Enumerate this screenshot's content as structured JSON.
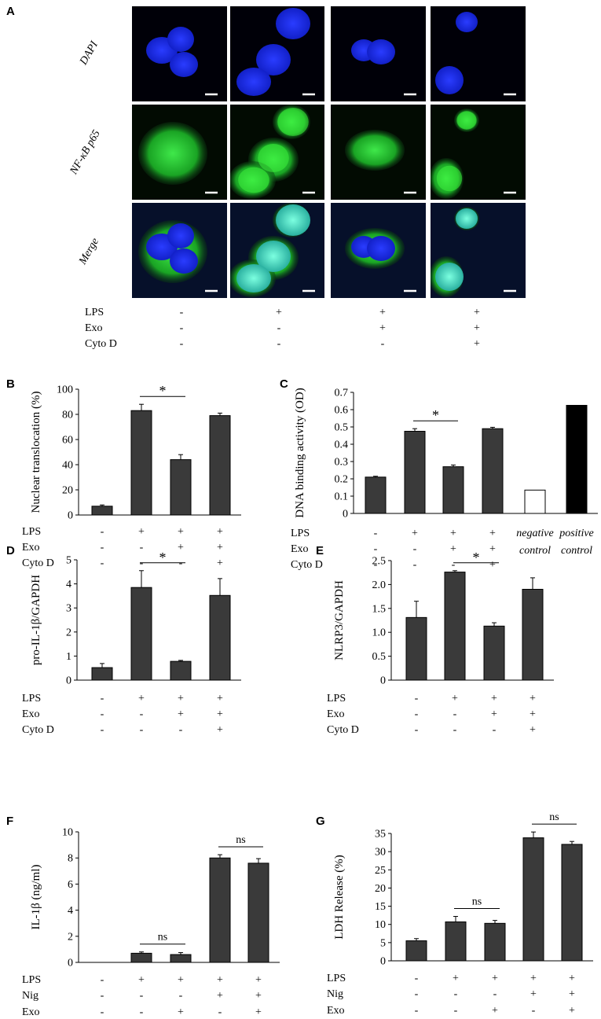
{
  "panel_A": {
    "letter": "A",
    "row_labels": [
      "DAPI",
      "NF-κB p65",
      "Merge"
    ],
    "conditions": {
      "labels": [
        "LPS",
        "Exo",
        "Cyto D"
      ],
      "signs": [
        [
          "-",
          "+",
          "+",
          "+"
        ],
        [
          "-",
          "-",
          "+",
          "+"
        ],
        [
          "-",
          "-",
          "-",
          "+"
        ]
      ]
    }
  },
  "chart_data": [
    {
      "id": "B",
      "type": "bar",
      "ylabel": "Nuclear translocation (%)",
      "ylim": [
        0,
        100
      ],
      "yticks": [
        "0",
        "20",
        "40",
        "60",
        "80",
        "100"
      ],
      "values": [
        7,
        83,
        44,
        79
      ],
      "errors": [
        1,
        5,
        4,
        2
      ],
      "bar_colors": [
        "#3a3a3a",
        "#3a3a3a",
        "#3a3a3a",
        "#3a3a3a"
      ],
      "significance": [
        {
          "from": 1,
          "to": 2,
          "label": "*"
        }
      ],
      "conditions": {
        "labels": [
          "LPS",
          "Exo",
          "Cyto D"
        ],
        "signs": [
          [
            "-",
            "+",
            "+",
            "+"
          ],
          [
            "-",
            "-",
            "+",
            "+"
          ],
          [
            "-",
            "-",
            "-",
            "+"
          ]
        ]
      }
    },
    {
      "id": "C",
      "type": "bar",
      "ylabel": "DNA binding activity (OD)",
      "ylim": [
        0,
        0.7
      ],
      "yticks": [
        "0",
        "0.1",
        "0.2",
        "0.3",
        "0.4",
        "0.5",
        "0.6",
        "0.7"
      ],
      "values": [
        0.21,
        0.475,
        0.27,
        0.49,
        0.135,
        0.625
      ],
      "errors": [
        0.005,
        0.015,
        0.01,
        0.008,
        0,
        0
      ],
      "bar_colors": [
        "#3a3a3a",
        "#3a3a3a",
        "#3a3a3a",
        "#3a3a3a",
        "#ffffff",
        "#000000"
      ],
      "significance": [
        {
          "from": 1,
          "to": 2,
          "label": "*"
        }
      ],
      "extra_labels": [
        [
          "negative",
          "control"
        ],
        [
          "positive",
          "control"
        ]
      ],
      "conditions": {
        "labels": [
          "LPS",
          "Exo",
          "Cyto D"
        ],
        "signs": [
          [
            "-",
            "+",
            "+",
            "+"
          ],
          [
            "-",
            "-",
            "+",
            "+"
          ],
          [
            "-",
            "-",
            "-",
            "+"
          ]
        ]
      }
    },
    {
      "id": "D",
      "type": "bar",
      "ylabel": "pro-IL-1β/GAPDH",
      "ylim": [
        0,
        5
      ],
      "yticks": [
        "0",
        "1",
        "2",
        "3",
        "4",
        "5"
      ],
      "values": [
        0.52,
        3.85,
        0.78,
        3.52
      ],
      "errors": [
        0.17,
        0.7,
        0.04,
        0.7
      ],
      "bar_colors": [
        "#3a3a3a",
        "#3a3a3a",
        "#3a3a3a",
        "#3a3a3a"
      ],
      "significance": [
        {
          "from": 1,
          "to": 2,
          "label": "*"
        }
      ],
      "conditions": {
        "labels": [
          "LPS",
          "Exo",
          "Cyto D"
        ],
        "signs": [
          [
            "-",
            "+",
            "+",
            "+"
          ],
          [
            "-",
            "-",
            "+",
            "+"
          ],
          [
            "-",
            "-",
            "-",
            "+"
          ]
        ]
      }
    },
    {
      "id": "E",
      "type": "bar",
      "ylabel": "NLRP3/GAPDH",
      "ylim": [
        0,
        2.5
      ],
      "yticks": [
        "0",
        "0.5",
        "1.0",
        "1.5",
        "2.0",
        "2.5"
      ],
      "values": [
        1.31,
        2.26,
        1.13,
        1.9
      ],
      "errors": [
        0.34,
        0.03,
        0.07,
        0.24
      ],
      "bar_colors": [
        "#3a3a3a",
        "#3a3a3a",
        "#3a3a3a",
        "#3a3a3a"
      ],
      "significance": [
        {
          "from": 1,
          "to": 2,
          "label": "*"
        }
      ],
      "conditions": {
        "labels": [
          "LPS",
          "Exo",
          "Cyto D"
        ],
        "signs": [
          [
            "-",
            "+",
            "+",
            "+"
          ],
          [
            "-",
            "-",
            "+",
            "+"
          ],
          [
            "-",
            "-",
            "-",
            "+"
          ]
        ]
      }
    },
    {
      "id": "F",
      "type": "bar",
      "ylabel": "IL-1β (ng/ml)",
      "ylim": [
        0,
        10
      ],
      "yticks": [
        "0",
        "2",
        "4",
        "6",
        "8",
        "10"
      ],
      "values": [
        0,
        0.7,
        0.6,
        8.0,
        7.6
      ],
      "errors": [
        0,
        0.1,
        0.15,
        0.25,
        0.35
      ],
      "bar_colors": [
        "#3a3a3a",
        "#3a3a3a",
        "#3a3a3a",
        "#3a3a3a",
        "#3a3a3a"
      ],
      "significance": [
        {
          "from": 1,
          "to": 2,
          "label": "ns"
        },
        {
          "from": 3,
          "to": 4,
          "label": "ns"
        }
      ],
      "conditions": {
        "labels": [
          "LPS",
          "Nig",
          "Exo"
        ],
        "signs": [
          [
            "-",
            "+",
            "+",
            "+",
            "+"
          ],
          [
            "-",
            "-",
            "-",
            "+",
            "+"
          ],
          [
            "-",
            "-",
            "+",
            "-",
            "+"
          ]
        ]
      }
    },
    {
      "id": "G",
      "type": "bar",
      "ylabel": "LDH Release (%)",
      "ylim": [
        0,
        35
      ],
      "yticks": [
        "0",
        "5",
        "10",
        "15",
        "20",
        "25",
        "30",
        "35"
      ],
      "values": [
        5.5,
        10.7,
        10.3,
        33.8,
        32.0
      ],
      "errors": [
        0.6,
        1.5,
        0.8,
        1.6,
        0.8
      ],
      "bar_colors": [
        "#3a3a3a",
        "#3a3a3a",
        "#3a3a3a",
        "#3a3a3a",
        "#3a3a3a"
      ],
      "significance": [
        {
          "from": 1,
          "to": 2,
          "label": "ns"
        },
        {
          "from": 3,
          "to": 4,
          "label": "ns"
        }
      ],
      "conditions": {
        "labels": [
          "LPS",
          "Nig",
          "Exo"
        ],
        "signs": [
          [
            "-",
            "+",
            "+",
            "+",
            "+"
          ],
          [
            "-",
            "-",
            "-",
            "+",
            "+"
          ],
          [
            "-",
            "-",
            "+",
            "-",
            "+"
          ]
        ]
      }
    }
  ]
}
